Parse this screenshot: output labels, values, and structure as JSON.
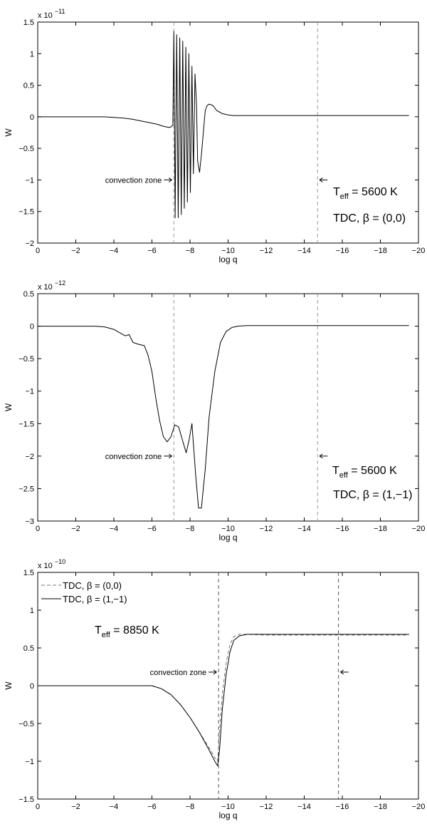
{
  "chart_data": [
    {
      "type": "line",
      "title": "",
      "xlabel": "log q",
      "ylabel": "W",
      "exponent_label": "x 10",
      "exponent_power": "−11",
      "xlim": [
        0,
        -20
      ],
      "ylim": [
        -2,
        1.5
      ],
      "xticks": [
        0,
        -2,
        -4,
        -6,
        -8,
        -10,
        -12,
        -14,
        -16,
        -18,
        -20
      ],
      "yticks": [
        -2,
        -1.5,
        -1,
        -0.5,
        0,
        0.5,
        1,
        1.5
      ],
      "xtick_labels": [
        "0",
        "−2",
        "−4",
        "−6",
        "−8",
        "−10",
        "−12",
        "−14",
        "−16",
        "−18",
        "−20"
      ],
      "ytick_labels": [
        "−2",
        "−1.5",
        "−1",
        "−0.5",
        "0",
        "0.5",
        "1",
        "1.5"
      ],
      "grid": false,
      "convection_zone": {
        "label": "convection zone",
        "bounds": [
          -7.15,
          -14.7
        ],
        "arrow_y": -1.0
      },
      "annotation_teff": {
        "T": "T",
        "sub": "eff",
        "value": " = 5600 K"
      },
      "annotation_tdc": {
        "text": "TDC, ",
        "beta": "β",
        "value": " = (0,0)"
      },
      "series": [
        {
          "style": "solid",
          "x": [
            0,
            -1,
            -2,
            -3,
            -3.5,
            -4,
            -4.5,
            -5,
            -5.5,
            -6,
            -6.3,
            -6.6,
            -6.9,
            -7.0,
            -7.1,
            -7.15,
            -7.22,
            -7.3,
            -7.38,
            -7.46,
            -7.54,
            -7.62,
            -7.7,
            -7.78,
            -7.86,
            -7.94,
            -8.02,
            -8.1,
            -8.18,
            -8.26,
            -8.34,
            -8.4,
            -8.5,
            -8.6,
            -8.7,
            -8.8,
            -8.9,
            -9.0,
            -9.2,
            -9.4,
            -9.7,
            -10.0,
            -10.3,
            -10.6,
            -11,
            -12,
            -14,
            -16,
            -18,
            -19.5
          ],
          "y": [
            0,
            0,
            0,
            0,
            0,
            -0.01,
            -0.02,
            -0.04,
            -0.07,
            -0.1,
            -0.12,
            -0.15,
            -0.17,
            -0.16,
            -0.13,
            1.35,
            -1.6,
            1.3,
            -1.6,
            1.25,
            -1.55,
            1.2,
            -1.45,
            1.1,
            -1.35,
            1.0,
            -1.2,
            0.8,
            -0.9,
            0.68,
            0.2,
            -0.7,
            -0.88,
            -0.6,
            -0.25,
            0.1,
            0.18,
            0.2,
            0.18,
            0.1,
            0.05,
            0.03,
            0.02,
            0.02,
            0.02,
            0.02,
            0.02,
            0.02,
            0.02,
            0.02
          ]
        }
      ]
    },
    {
      "type": "line",
      "title": "",
      "xlabel": "log q",
      "ylabel": "W",
      "exponent_label": "x 10",
      "exponent_power": "−12",
      "xlim": [
        0,
        -20
      ],
      "ylim": [
        -3,
        0.5
      ],
      "xticks": [
        0,
        -2,
        -4,
        -6,
        -8,
        -10,
        -12,
        -14,
        -16,
        -18,
        -20
      ],
      "yticks": [
        -3,
        -2.5,
        -2,
        -1.5,
        -1,
        -0.5,
        0,
        0.5
      ],
      "xtick_labels": [
        "0",
        "−2",
        "−4",
        "−6",
        "−8",
        "−10",
        "−12",
        "−14",
        "−16",
        "−18",
        "−20"
      ],
      "ytick_labels": [
        "−3",
        "−2.5",
        "−2",
        "−1.5",
        "−1",
        "−0.5",
        "0",
        "0.5"
      ],
      "grid": false,
      "convection_zone": {
        "label": "convection zone",
        "bounds": [
          -7.15,
          -14.7
        ],
        "arrow_y": -2.0
      },
      "annotation_teff": {
        "T": "T",
        "sub": "eff",
        "value": " = 5600 K"
      },
      "annotation_tdc": {
        "text": "TDC, ",
        "beta": "β",
        "value": " = (1,−1)"
      },
      "series": [
        {
          "style": "solid",
          "x": [
            0,
            -1,
            -2,
            -3,
            -3.5,
            -4,
            -4.3,
            -4.6,
            -4.8,
            -5,
            -5.3,
            -5.6,
            -5.8,
            -6.0,
            -6.2,
            -6.4,
            -6.6,
            -6.8,
            -7.0,
            -7.2,
            -7.4,
            -7.6,
            -7.8,
            -7.95,
            -8.1,
            -8.3,
            -8.45,
            -8.6,
            -8.8,
            -9.0,
            -9.3,
            -9.6,
            -9.9,
            -10.2,
            -10.5,
            -11,
            -12,
            -14,
            -16,
            -18,
            -19.5
          ],
          "y": [
            0,
            0,
            0,
            0,
            -0.01,
            -0.05,
            -0.1,
            -0.15,
            -0.13,
            -0.25,
            -0.28,
            -0.3,
            -0.45,
            -0.7,
            -1.1,
            -1.45,
            -1.7,
            -1.78,
            -1.7,
            -1.52,
            -1.55,
            -1.75,
            -1.95,
            -1.75,
            -1.5,
            -2.3,
            -2.8,
            -2.8,
            -2.2,
            -1.4,
            -0.7,
            -0.25,
            -0.08,
            -0.02,
            0,
            0.01,
            0.01,
            0.01,
            0.01,
            0.01,
            0.01
          ]
        }
      ]
    },
    {
      "type": "line",
      "title": "",
      "xlabel": "log q",
      "ylabel": "W",
      "exponent_label": "x 10",
      "exponent_power": "−10",
      "xlim": [
        0,
        -20
      ],
      "ylim": [
        -1.5,
        1.5
      ],
      "xticks": [
        0,
        -2,
        -4,
        -6,
        -8,
        -10,
        -12,
        -14,
        -16,
        -18,
        -20
      ],
      "yticks": [
        -1.5,
        -1,
        -0.5,
        0,
        0.5,
        1,
        1.5
      ],
      "xtick_labels": [
        "0",
        "−2",
        "−4",
        "−6",
        "−8",
        "−10",
        "−12",
        "−14",
        "−16",
        "−18",
        "−20"
      ],
      "ytick_labels": [
        "−1.5",
        "−1",
        "−0.5",
        "0",
        "0.5",
        "1",
        "1.5"
      ],
      "grid": false,
      "convection_zone": {
        "label": "convection zone",
        "bounds": [
          -9.5,
          -15.8
        ],
        "arrow_y": 0.18
      },
      "annotation_teff": {
        "T": "T",
        "sub": "eff",
        "value": " = 8850 K"
      },
      "legend_position": "top-left",
      "series": [
        {
          "name_prefix": "TDC, ",
          "name_beta": "β",
          "name_value": " = (0,0)",
          "style": "dashed",
          "x": [
            0,
            -2,
            -4,
            -5,
            -6,
            -6.5,
            -7,
            -7.5,
            -8,
            -8.5,
            -9.0,
            -9.3,
            -9.45,
            -9.55,
            -9.7,
            -9.9,
            -10.1,
            -10.3,
            -10.6,
            -11,
            -12,
            -14,
            -16,
            -18,
            -19.5
          ],
          "y": [
            0,
            0,
            0,
            0,
            0,
            -0.04,
            -0.12,
            -0.25,
            -0.42,
            -0.62,
            -0.82,
            -0.95,
            -1.0,
            -0.6,
            -0.1,
            0.3,
            0.55,
            0.65,
            0.68,
            0.68,
            0.67,
            0.67,
            0.67,
            0.67,
            0.67
          ]
        },
        {
          "name_prefix": "TDC, ",
          "name_beta": "β",
          "name_value": " = (1,−1)",
          "style": "solid",
          "x": [
            0,
            -2,
            -4,
            -5,
            -6,
            -6.5,
            -7,
            -7.5,
            -8,
            -8.5,
            -9.0,
            -9.3,
            -9.45,
            -9.55,
            -9.7,
            -9.9,
            -10.1,
            -10.3,
            -10.6,
            -11,
            -12,
            -14,
            -16,
            -18,
            -19.5
          ],
          "y": [
            0,
            0,
            0,
            0,
            0,
            -0.04,
            -0.12,
            -0.25,
            -0.42,
            -0.62,
            -0.85,
            -1.0,
            -1.06,
            -0.85,
            -0.3,
            0.15,
            0.45,
            0.6,
            0.66,
            0.68,
            0.68,
            0.68,
            0.68,
            0.68,
            0.68
          ]
        }
      ]
    }
  ]
}
